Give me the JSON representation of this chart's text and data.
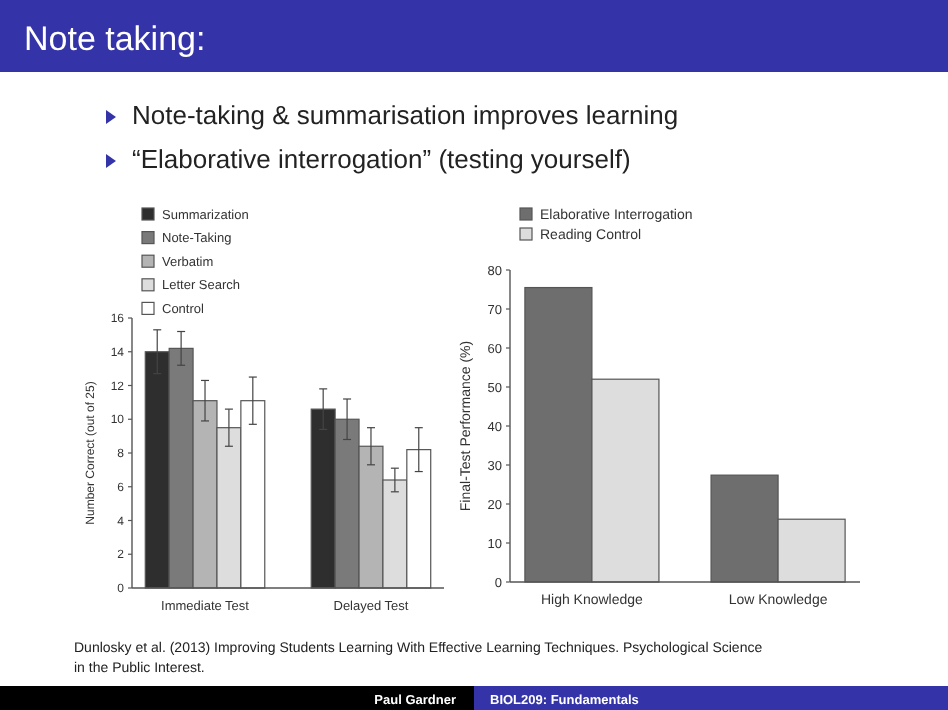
{
  "chart_data": [
    {
      "type": "bar",
      "title": "Note taking:",
      "ylabel": "Number Correct (out of 25)",
      "categories": [
        "Immediate Test",
        "Delayed Test"
      ],
      "ylim": [
        0,
        16
      ],
      "yticks": [
        0,
        2,
        4,
        6,
        8,
        10,
        12,
        14,
        16
      ],
      "legend": "top",
      "grid": false,
      "series": [
        {
          "name": "Summarization",
          "color": "#2e2e2e",
          "values": [
            14.0,
            10.6
          ],
          "errors": [
            1.3,
            1.2
          ]
        },
        {
          "name": "Note-Taking",
          "color": "#7a7a7a",
          "values": [
            14.2,
            10.0
          ],
          "errors": [
            1.0,
            1.2
          ]
        },
        {
          "name": "Verbatim",
          "color": "#b4b4b4",
          "values": [
            11.1,
            8.4
          ],
          "errors": [
            1.2,
            1.1
          ]
        },
        {
          "name": "Letter Search",
          "color": "#dddddd",
          "values": [
            9.5,
            6.4
          ],
          "errors": [
            1.1,
            0.7
          ]
        },
        {
          "name": "Control",
          "color": "#ffffff",
          "values": [
            11.1,
            8.2
          ],
          "errors": [
            1.4,
            1.3
          ]
        }
      ],
      "annotations": [
        "Note-taking & summarisation improves learning",
        "“Elaborative interrogation” (testing yourself)",
        "Dunlosky et al. (2013) Improving Students Learning With Effective Learning Techniques. Psychological Science in the Public Interest.",
        "Paul Gardner",
        "BIOL209: Fundamentals"
      ]
    },
    {
      "type": "bar",
      "ylabel": "Final-Test Performance (%)",
      "categories": [
        "High Knowledge",
        "Low Knowledge"
      ],
      "ylim": [
        0,
        80
      ],
      "yticks": [
        0,
        10,
        20,
        30,
        40,
        50,
        60,
        70,
        80
      ],
      "legend": "top",
      "grid": false,
      "series": [
        {
          "name": "Elaborative Interrogation",
          "color": "#6e6e6e",
          "values": [
            75.5,
            27.4
          ]
        },
        {
          "name": "Reading Control",
          "color": "#dddddd",
          "values": [
            52,
            16.1
          ]
        }
      ]
    }
  ]
}
